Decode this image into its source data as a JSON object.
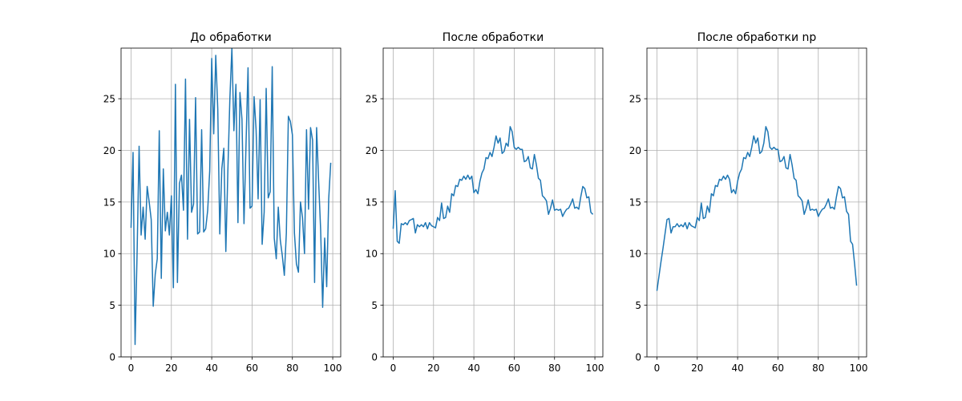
{
  "chart_data": [
    {
      "type": "line",
      "title": "До обработки",
      "x": [
        0,
        1,
        2,
        3,
        4,
        5,
        6,
        7,
        8,
        9,
        10,
        11,
        12,
        13,
        14,
        15,
        16,
        17,
        18,
        19,
        20,
        21,
        22,
        23,
        24,
        25,
        26,
        27,
        28,
        29,
        30,
        31,
        32,
        33,
        34,
        35,
        36,
        37,
        38,
        39,
        40,
        41,
        42,
        43,
        44,
        45,
        46,
        47,
        48,
        49,
        50,
        51,
        52,
        53,
        54,
        55,
        56,
        57,
        58,
        59,
        60,
        61,
        62,
        63,
        64,
        65,
        66,
        67,
        68,
        69,
        70,
        71,
        72,
        73,
        74,
        75,
        76,
        77,
        78,
        79,
        80,
        81,
        82,
        83,
        84,
        85,
        86,
        87,
        88,
        89,
        90,
        91,
        92,
        93,
        94,
        95,
        96,
        97,
        98,
        99
      ],
      "series": [
        {
          "color": "#1f77b4",
          "values": [
            12.5,
            19.8,
            1.2,
            10,
            20.4,
            11.8,
            14.5,
            11.4,
            16.5,
            15,
            13.3,
            4.9,
            8,
            9.5,
            21.9,
            7.6,
            18.2,
            12.2,
            14,
            11.8,
            15.6,
            6.7,
            26.4,
            7.2,
            16.8,
            17.6,
            14.2,
            26.9,
            11.4,
            23,
            14,
            14.8,
            25.1,
            11.9,
            12.1,
            22,
            12.1,
            12.4,
            14.2,
            18,
            28.9,
            21.6,
            29.2,
            24,
            11.9,
            18.2,
            20.2,
            10.2,
            18,
            25,
            29.9,
            21.9,
            26.4,
            13,
            25.6,
            23,
            12.9,
            20.5,
            28,
            14.4,
            14.6,
            25.2,
            22,
            15.3,
            24.9,
            10.9,
            14,
            26,
            15.4,
            16,
            28.1,
            11.5,
            9.5,
            14.5,
            11.3,
            9.8,
            7.9,
            12,
            23.3,
            22.8,
            21.5,
            12,
            9,
            8.2,
            15,
            13.5,
            10,
            22,
            14.3,
            22.2,
            21,
            7.2,
            22.2,
            17,
            12.3,
            4.8,
            11.5,
            6.8,
            15.3,
            18.8
          ]
        }
      ],
      "xlim": [
        -4.95,
        103.95
      ],
      "ylim": [
        0,
        29.9
      ],
      "xticks": [
        0,
        20,
        40,
        60,
        80,
        100
      ],
      "yticks": [
        0,
        5,
        10,
        15,
        20,
        25
      ],
      "grid": true
    },
    {
      "type": "line",
      "title": "После обработки",
      "x": [
        0,
        1,
        2,
        3,
        4,
        5,
        6,
        7,
        8,
        9,
        10,
        11,
        12,
        13,
        14,
        15,
        16,
        17,
        18,
        19,
        20,
        21,
        22,
        23,
        24,
        25,
        26,
        27,
        28,
        29,
        30,
        31,
        32,
        33,
        34,
        35,
        36,
        37,
        38,
        39,
        40,
        41,
        42,
        43,
        44,
        45,
        46,
        47,
        48,
        49,
        50,
        51,
        52,
        53,
        54,
        55,
        56,
        57,
        58,
        59,
        60,
        61,
        62,
        63,
        64,
        65,
        66,
        67,
        68,
        69,
        70,
        71,
        72,
        73,
        74,
        75,
        76,
        77,
        78,
        79,
        80,
        81,
        82,
        83,
        84,
        85,
        86,
        87,
        88,
        89,
        90,
        91,
        92,
        93,
        94,
        95,
        96,
        97,
        98,
        99
      ],
      "series": [
        {
          "color": "#1f77b4",
          "values": [
            12.4,
            16.1,
            11.2,
            11,
            12.9,
            12.8,
            13,
            12.8,
            13.2,
            13.3,
            13.4,
            12,
            12.8,
            12.6,
            12.8,
            12.6,
            13,
            12.4,
            13,
            12.7,
            12.6,
            12.5,
            13.5,
            13.2,
            14.9,
            13.4,
            13.5,
            14.6,
            14,
            15.8,
            15.6,
            16.6,
            16.5,
            17.2,
            17.1,
            17.5,
            17.2,
            17.6,
            17.2,
            17.5,
            15.9,
            16.2,
            15.8,
            17,
            17.8,
            18.2,
            19.3,
            19.2,
            19.8,
            19.4,
            20.3,
            21.4,
            20.7,
            21.2,
            19.7,
            19.9,
            20.7,
            20.4,
            22.3,
            21.8,
            20.3,
            20.1,
            20.3,
            20.1,
            20.1,
            18.9,
            19,
            19.4,
            18.3,
            18.2,
            19.6,
            18.6,
            17.3,
            17.1,
            15.6,
            15.4,
            15.1,
            13.8,
            14.4,
            15.2,
            14.2,
            14.3,
            14.2,
            14.3,
            13.6,
            14,
            14.3,
            14.4,
            14.8,
            15.3,
            14.4,
            14.5,
            14.3,
            15.5,
            16.5,
            16.3,
            15.4,
            15.5,
            14,
            13.8
          ]
        }
      ],
      "xlim": [
        -4.95,
        103.95
      ],
      "ylim": [
        0,
        29.9
      ],
      "xticks": [
        0,
        20,
        40,
        60,
        80,
        100
      ],
      "yticks": [
        0,
        5,
        10,
        15,
        20,
        25
      ],
      "grid": true
    },
    {
      "type": "line",
      "title": "После обработки np",
      "x": [
        0,
        1,
        2,
        3,
        4,
        5,
        6,
        7,
        8,
        9,
        10,
        11,
        12,
        13,
        14,
        15,
        16,
        17,
        18,
        19,
        20,
        21,
        22,
        23,
        24,
        25,
        26,
        27,
        28,
        29,
        30,
        31,
        32,
        33,
        34,
        35,
        36,
        37,
        38,
        39,
        40,
        41,
        42,
        43,
        44,
        45,
        46,
        47,
        48,
        49,
        50,
        51,
        52,
        53,
        54,
        55,
        56,
        57,
        58,
        59,
        60,
        61,
        62,
        63,
        64,
        65,
        66,
        67,
        68,
        69,
        70,
        71,
        72,
        73,
        74,
        75,
        76,
        77,
        78,
        79,
        80,
        81,
        82,
        83,
        84,
        85,
        86,
        87,
        88,
        89,
        90,
        91,
        92,
        93,
        94,
        95,
        96,
        97,
        98,
        99
      ],
      "series": [
        {
          "color": "#1f77b4",
          "values": [
            6.4,
            7.8,
            9.2,
            10.5,
            11.9,
            13.3,
            13.4,
            12,
            12.6,
            12.6,
            12.9,
            12.6,
            12.8,
            12.6,
            13,
            12.4,
            13,
            12.7,
            12.6,
            12.5,
            13.5,
            13.2,
            14.9,
            13.4,
            13.5,
            14.6,
            14,
            15.8,
            15.6,
            16.6,
            16.5,
            17.2,
            17.1,
            17.5,
            17.2,
            17.6,
            17.2,
            15.9,
            16.2,
            15.8,
            17,
            17.8,
            18.2,
            19.3,
            19.2,
            19.8,
            19.4,
            20.3,
            21.4,
            20.7,
            21.2,
            19.7,
            19.9,
            20.7,
            22.3,
            21.8,
            20.3,
            20.1,
            20.3,
            20.1,
            20.1,
            18.9,
            19,
            19.4,
            18.3,
            18.2,
            19.6,
            18.6,
            17.3,
            17.1,
            15.6,
            15.4,
            15.1,
            13.8,
            14.4,
            15.2,
            14.2,
            14.3,
            14.2,
            14.3,
            13.6,
            14,
            14.3,
            14.4,
            14.8,
            15.3,
            14.4,
            14.5,
            14.3,
            15.5,
            16.5,
            16.3,
            15.4,
            15.5,
            14.1,
            13.8,
            11.2,
            10.9,
            9,
            6.9
          ]
        }
      ],
      "xlim": [
        -4.95,
        103.95
      ],
      "ylim": [
        0,
        29.9
      ],
      "xticks": [
        0,
        20,
        40,
        60,
        80,
        100
      ],
      "yticks": [
        0,
        5,
        10,
        15,
        20,
        25
      ],
      "grid": true
    }
  ]
}
